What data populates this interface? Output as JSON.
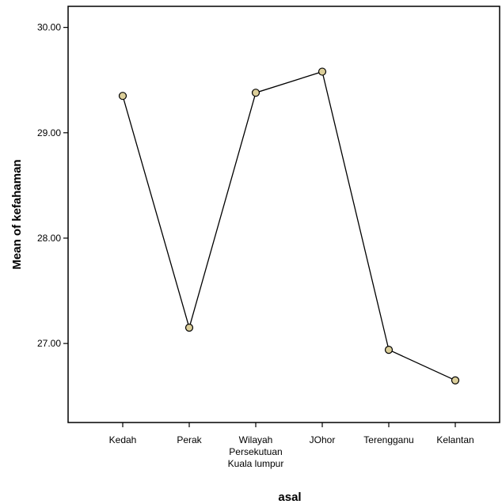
{
  "chart_data": {
    "type": "line",
    "title": "",
    "xlabel": "asal",
    "ylabel": "Mean of kefahaman",
    "categories": [
      [
        "Kedah"
      ],
      [
        "Perak"
      ],
      [
        "Wilayah",
        "Persekutuan",
        "Kuala lumpur"
      ],
      [
        "JOhor"
      ],
      [
        "Terengganu"
      ],
      [
        "Kelantan"
      ]
    ],
    "values": [
      29.35,
      27.15,
      29.38,
      29.58,
      26.94,
      26.65
    ],
    "yticks": [
      "27.00",
      "28.00",
      "29.00",
      "30.00"
    ],
    "ylim": [
      26.25,
      30.2
    ],
    "grid": false,
    "legend": "none",
    "colors": {
      "line": "#000000",
      "marker_fill": "#dccf9a",
      "marker_stroke": "#000000"
    }
  }
}
